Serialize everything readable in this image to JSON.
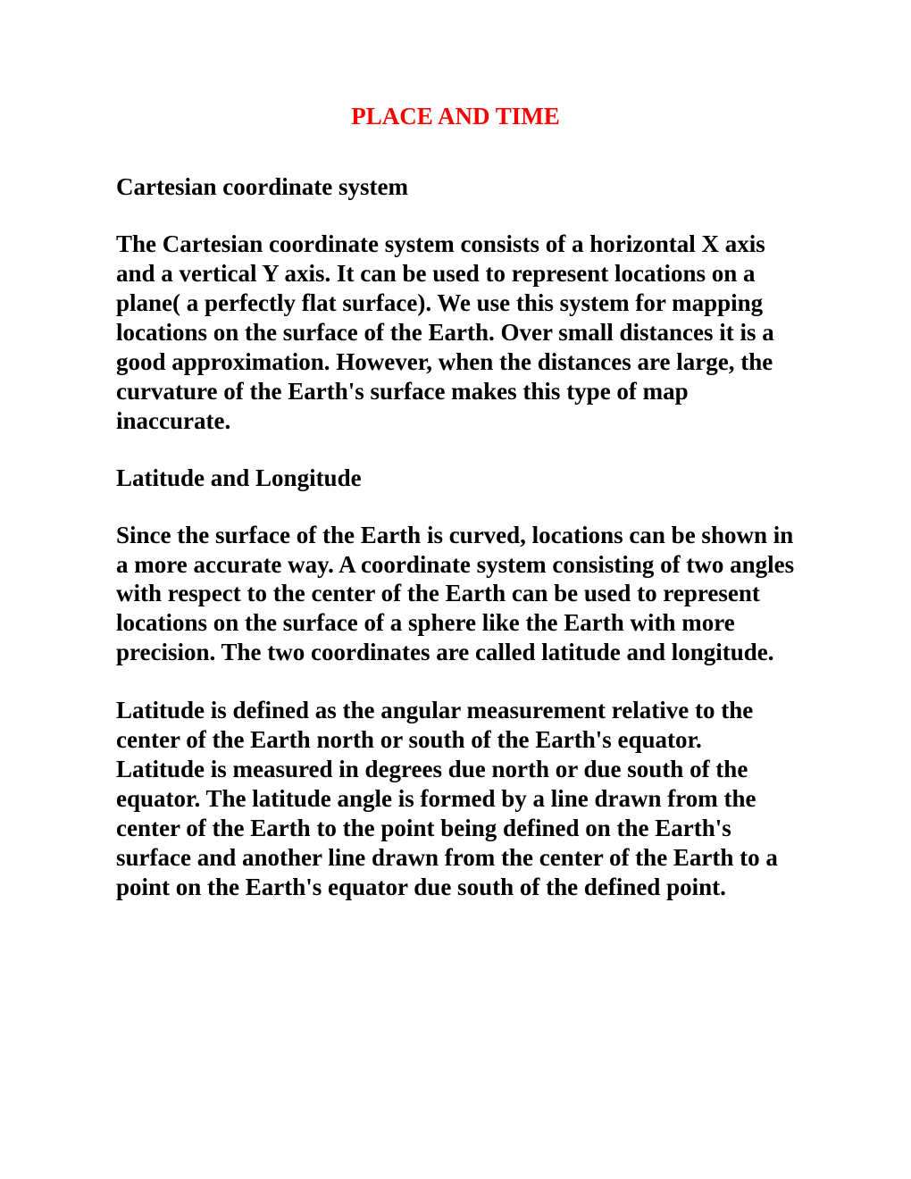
{
  "document": {
    "title": "PLACE AND TIME",
    "title_color": "#ff0000",
    "text_color": "#000000",
    "background_color": "#ffffff",
    "font_family": "Times New Roman",
    "font_size_pt": 20,
    "sections": [
      {
        "heading": "Cartesian coordinate system",
        "paragraphs": [
          "The Cartesian coordinate system consists of a horizontal X axis and a vertical Y axis.  It can be used to represent locations on a plane( a perfectly flat surface). We use this system for mapping locations on the surface of the Earth. Over small distances it is a good approximation. However, when the distances are large, the curvature of the Earth's surface makes this type of map inaccurate."
        ]
      },
      {
        "heading": "Latitude and Longitude",
        "paragraphs": [
          "Since the surface of the Earth is curved, locations can be shown in a more accurate way. A coordinate system consisting of two angles with respect to the center of the Earth can be used to represent locations on the surface of a sphere like the Earth with more precision. The two coordinates are called latitude and longitude.",
          "Latitude is defined as the angular measurement relative to the center of the Earth north or south of the Earth's equator. Latitude is measured in degrees due north or due south of the equator. The latitude angle is formed by a line drawn from the center of the Earth to the point being defined on the Earth's surface and another line drawn from the center of the Earth to a point on the Earth's equator due south of the defined point."
        ]
      }
    ]
  }
}
